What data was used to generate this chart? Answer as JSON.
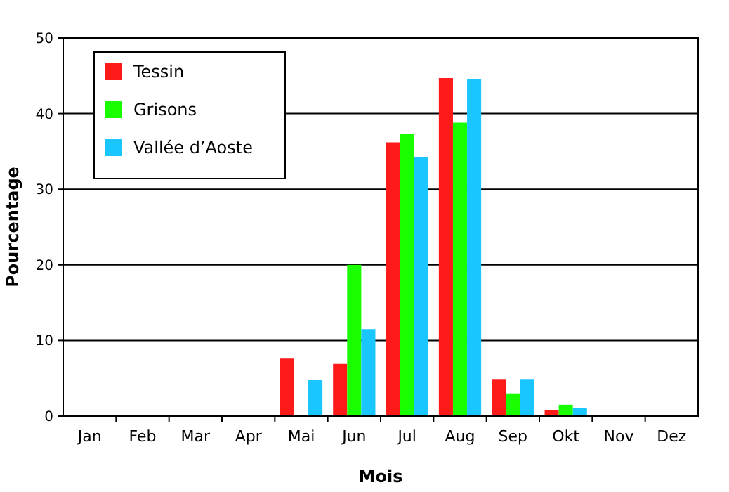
{
  "chart_data": {
    "type": "bar",
    "xlabel": "Mois",
    "ylabel": "Pourcentage",
    "categories": [
      "Jan",
      "Feb",
      "Mar",
      "Apr",
      "Mai",
      "Jun",
      "Jul",
      "Aug",
      "Sep",
      "Okt",
      "Nov",
      "Dez"
    ],
    "series": [
      {
        "name": "Tessin",
        "color": "#ff1a1a",
        "values": [
          0,
          0,
          0,
          0,
          7.6,
          6.9,
          36.2,
          44.7,
          4.9,
          0.8,
          0,
          0
        ]
      },
      {
        "name": "Grisons",
        "color": "#1aff00",
        "values": [
          0,
          0,
          0,
          0,
          0,
          20.0,
          37.3,
          38.8,
          3.0,
          1.5,
          0,
          0
        ]
      },
      {
        "name": "Vallée d’Aoste",
        "color": "#1ac6ff",
        "values": [
          0,
          0,
          0,
          0,
          4.8,
          11.5,
          34.2,
          44.6,
          4.9,
          1.1,
          0,
          0
        ]
      }
    ],
    "ylim": [
      0,
      50
    ],
    "yticks": [
      0,
      10,
      20,
      30,
      40,
      50
    ],
    "grid": "y",
    "legend": "top left"
  }
}
